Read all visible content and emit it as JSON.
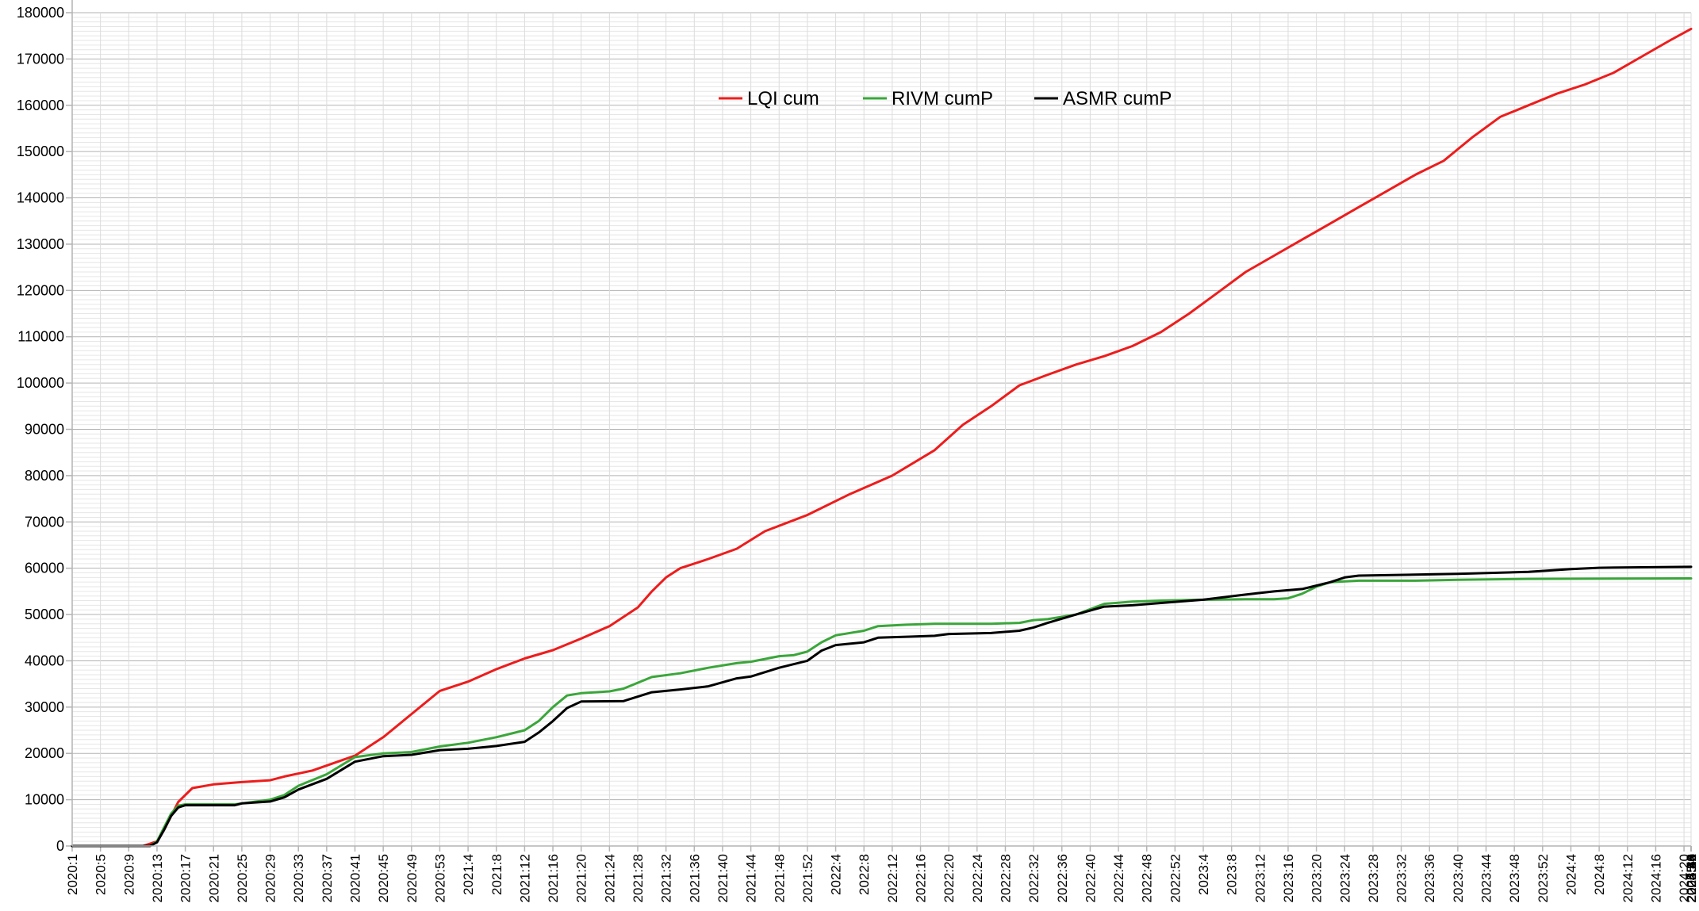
{
  "chart_data": {
    "type": "line",
    "title": "",
    "xlabel": "",
    "ylabel": "",
    "ylim": [
      0,
      180000
    ],
    "yticks": [
      0,
      10000,
      20000,
      30000,
      40000,
      50000,
      60000,
      70000,
      80000,
      90000,
      100000,
      110000,
      120000,
      130000,
      140000,
      150000,
      160000,
      170000,
      180000
    ],
    "x_tick_labels": [
      "2020:1",
      "2020:5",
      "2020:9",
      "2020:13",
      "2020:17",
      "2020:21",
      "2020:25",
      "2020:29",
      "2020:33",
      "2020:37",
      "2020:41",
      "2020:45",
      "2020:49",
      "2020:53",
      "2021:4",
      "2021:8",
      "2021:12",
      "2021:16",
      "2021:20",
      "2021:24",
      "2021:28",
      "2021:32",
      "2021:36",
      "2021:40",
      "2021:44",
      "2021:48",
      "2021:52",
      "2022:4",
      "2022:8",
      "2022:12",
      "2022:16",
      "2022:20",
      "2022:24",
      "2022:28",
      "2022:32",
      "2022:36",
      "2022:40",
      "2022:44",
      "2022:48",
      "2022:52",
      "2023:4",
      "2023:8",
      "2023:12",
      "2023:16",
      "2023:20",
      "2023:24",
      "2023:28",
      "2023:32",
      "2023:36",
      "2023:40",
      "2023:44",
      "2023:48",
      "2023:52",
      "2024:4",
      "2024:8",
      "2024:12",
      "2024:16",
      "2024:20",
      "2024:24",
      "2024:28",
      "2024:32",
      "2024:36",
      "2024:40",
      "2024:44",
      "2024:48",
      "2024:52",
      "2025:4",
      "2025:8",
      "2025:12",
      "2025:16",
      "2025:20",
      "2025:24",
      "2025:28",
      "2025:32",
      "2025:36",
      "2025:40",
      "2025:44",
      "2025:48",
      "2025:52"
    ],
    "grid": true,
    "legend_position": "top-center",
    "series": [
      {
        "name": "LQI cum",
        "color": "#ee1c1c",
        "points": [
          [
            0,
            0
          ],
          [
            10,
            0
          ],
          [
            12,
            1000
          ],
          [
            13,
            3500
          ],
          [
            15,
            9500
          ],
          [
            17,
            12500
          ],
          [
            20,
            13300
          ],
          [
            24,
            13800
          ],
          [
            28,
            14200
          ],
          [
            30,
            15000
          ],
          [
            34,
            16300
          ],
          [
            40,
            19500
          ],
          [
            44,
            23500
          ],
          [
            48,
            28500
          ],
          [
            52,
            33500
          ],
          [
            56,
            35500
          ],
          [
            60,
            38200
          ],
          [
            64,
            40500
          ],
          [
            68,
            42300
          ],
          [
            72,
            44800
          ],
          [
            76,
            47500
          ],
          [
            80,
            51500
          ],
          [
            82,
            55000
          ],
          [
            84,
            58000
          ],
          [
            86,
            60000
          ],
          [
            90,
            62000
          ],
          [
            94,
            64200
          ],
          [
            98,
            68000
          ],
          [
            104,
            71500
          ],
          [
            110,
            76000
          ],
          [
            116,
            80000
          ],
          [
            122,
            85500
          ],
          [
            126,
            91000
          ],
          [
            130,
            95000
          ],
          [
            134,
            99500
          ],
          [
            138,
            101800
          ],
          [
            142,
            104000
          ],
          [
            146,
            105800
          ],
          [
            150,
            108000
          ],
          [
            154,
            111000
          ],
          [
            158,
            115000
          ],
          [
            162,
            119500
          ],
          [
            166,
            124000
          ],
          [
            170,
            127500
          ],
          [
            174,
            131000
          ],
          [
            178,
            134500
          ],
          [
            182,
            138000
          ],
          [
            186,
            141500
          ],
          [
            190,
            145000
          ],
          [
            194,
            148000
          ],
          [
            198,
            153000
          ],
          [
            202,
            157500
          ],
          [
            206,
            160000
          ],
          [
            210,
            162500
          ],
          [
            214,
            164500
          ],
          [
            218,
            167000
          ],
          [
            222,
            170500
          ],
          [
            226,
            174000
          ],
          [
            229,
            176500
          ]
        ]
      },
      {
        "name": "RIVM cumP",
        "color": "#3aa63a",
        "points": [
          [
            0,
            0
          ],
          [
            11,
            0
          ],
          [
            12,
            1000
          ],
          [
            13,
            4000
          ],
          [
            14,
            7000
          ],
          [
            15,
            8700
          ],
          [
            16,
            9000
          ],
          [
            23,
            9000
          ],
          [
            24,
            9200
          ],
          [
            28,
            10000
          ],
          [
            30,
            11000
          ],
          [
            32,
            13000
          ],
          [
            36,
            15500
          ],
          [
            40,
            19200
          ],
          [
            44,
            20000
          ],
          [
            48,
            20300
          ],
          [
            52,
            21500
          ],
          [
            56,
            22300
          ],
          [
            60,
            23500
          ],
          [
            64,
            25000
          ],
          [
            66,
            27000
          ],
          [
            68,
            30000
          ],
          [
            70,
            32500
          ],
          [
            72,
            33000
          ],
          [
            76,
            33400
          ],
          [
            78,
            34000
          ],
          [
            82,
            36500
          ],
          [
            86,
            37300
          ],
          [
            90,
            38500
          ],
          [
            94,
            39500
          ],
          [
            96,
            39800
          ],
          [
            100,
            41000
          ],
          [
            102,
            41200
          ],
          [
            104,
            42000
          ],
          [
            106,
            44000
          ],
          [
            108,
            45500
          ],
          [
            112,
            46500
          ],
          [
            114,
            47500
          ],
          [
            118,
            47800
          ],
          [
            122,
            48000
          ],
          [
            130,
            48000
          ],
          [
            134,
            48200
          ],
          [
            136,
            48800
          ],
          [
            138,
            49000
          ],
          [
            142,
            50000
          ],
          [
            146,
            52300
          ],
          [
            150,
            52800
          ],
          [
            154,
            53000
          ],
          [
            160,
            53200
          ],
          [
            166,
            53300
          ],
          [
            170,
            53300
          ],
          [
            172,
            53500
          ],
          [
            174,
            54500
          ],
          [
            176,
            56000
          ],
          [
            178,
            57000
          ],
          [
            182,
            57300
          ],
          [
            190,
            57300
          ],
          [
            196,
            57500
          ],
          [
            206,
            57700
          ],
          [
            229,
            57800
          ]
        ]
      },
      {
        "name": "ASMR cumP",
        "color": "#000000",
        "points": [
          [
            0,
            0
          ],
          [
            11,
            0
          ],
          [
            12,
            800
          ],
          [
            13,
            3500
          ],
          [
            14,
            6500
          ],
          [
            15,
            8300
          ],
          [
            16,
            8800
          ],
          [
            23,
            8800
          ],
          [
            24,
            9200
          ],
          [
            28,
            9600
          ],
          [
            30,
            10500
          ],
          [
            32,
            12200
          ],
          [
            36,
            14500
          ],
          [
            40,
            18200
          ],
          [
            44,
            19400
          ],
          [
            48,
            19700
          ],
          [
            52,
            20700
          ],
          [
            56,
            21000
          ],
          [
            60,
            21600
          ],
          [
            64,
            22500
          ],
          [
            66,
            24500
          ],
          [
            68,
            27000
          ],
          [
            70,
            29800
          ],
          [
            72,
            31200
          ],
          [
            78,
            31300
          ],
          [
            82,
            33200
          ],
          [
            86,
            33800
          ],
          [
            90,
            34500
          ],
          [
            94,
            36200
          ],
          [
            96,
            36600
          ],
          [
            100,
            38500
          ],
          [
            104,
            40000
          ],
          [
            106,
            42200
          ],
          [
            108,
            43400
          ],
          [
            112,
            44000
          ],
          [
            114,
            45000
          ],
          [
            118,
            45200
          ],
          [
            122,
            45400
          ],
          [
            124,
            45800
          ],
          [
            130,
            46000
          ],
          [
            134,
            46500
          ],
          [
            136,
            47200
          ],
          [
            138,
            48200
          ],
          [
            142,
            50000
          ],
          [
            146,
            51700
          ],
          [
            150,
            52000
          ],
          [
            154,
            52500
          ],
          [
            160,
            53200
          ],
          [
            166,
            54300
          ],
          [
            170,
            55000
          ],
          [
            174,
            55500
          ],
          [
            178,
            57000
          ],
          [
            180,
            58000
          ],
          [
            182,
            58400
          ],
          [
            190,
            58600
          ],
          [
            196,
            58800
          ],
          [
            206,
            59200
          ],
          [
            212,
            59800
          ],
          [
            216,
            60100
          ],
          [
            229,
            60300
          ]
        ]
      }
    ]
  }
}
